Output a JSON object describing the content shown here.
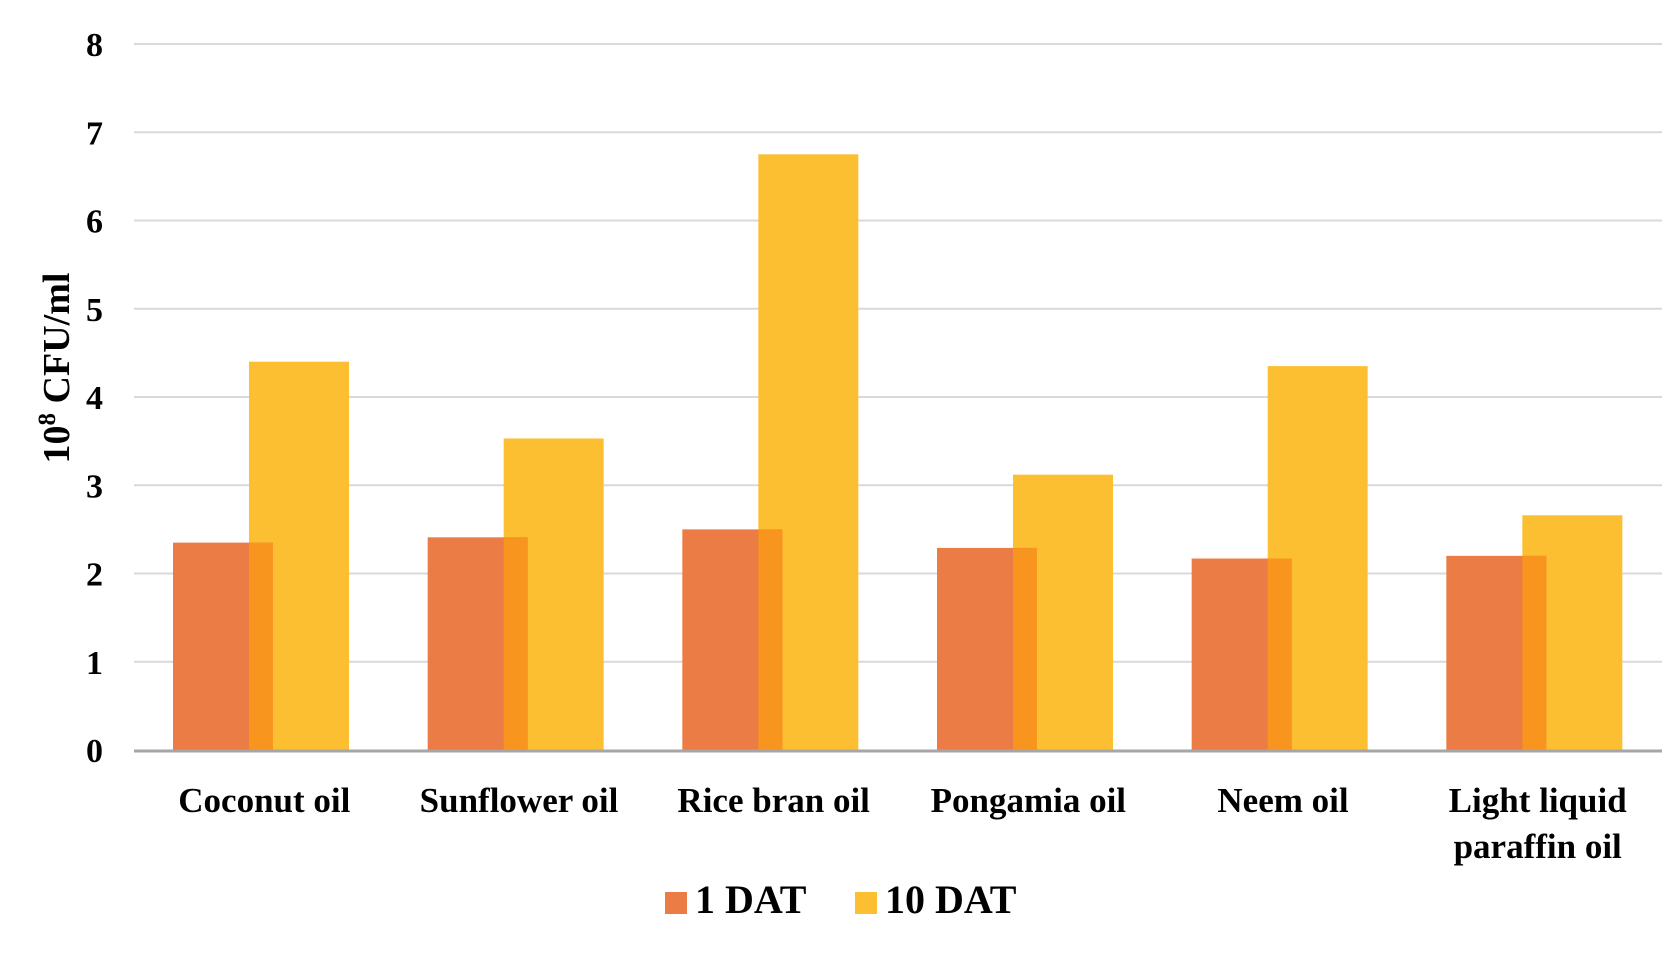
{
  "chart_data": {
    "type": "bar",
    "categories": [
      [
        "Coconut oil"
      ],
      [
        "Sunflower oil"
      ],
      [
        "Rice bran oil"
      ],
      [
        "Pongamia oil"
      ],
      [
        "Neem oil"
      ],
      [
        "Light liquid",
        "paraffin oil"
      ]
    ],
    "series": [
      {
        "name": "1 DAT",
        "color": "#EB7C45",
        "values": [
          2.35,
          2.41,
          2.5,
          2.29,
          2.17,
          2.2
        ]
      },
      {
        "name": "10 DAT",
        "color": "#FDBF32",
        "values": [
          4.4,
          3.53,
          6.75,
          3.12,
          4.35,
          2.66
        ]
      }
    ],
    "overlap_color": "#F7951E",
    "ylabel_base": "10",
    "ylabel_exp": "8",
    "ylabel_unit": " CFU/ml",
    "ylim": [
      0,
      8
    ],
    "yticks": [
      "0",
      "1",
      "2",
      "3",
      "4",
      "5",
      "6",
      "7",
      "8"
    ],
    "grid": true,
    "legend_position": "bottom"
  }
}
